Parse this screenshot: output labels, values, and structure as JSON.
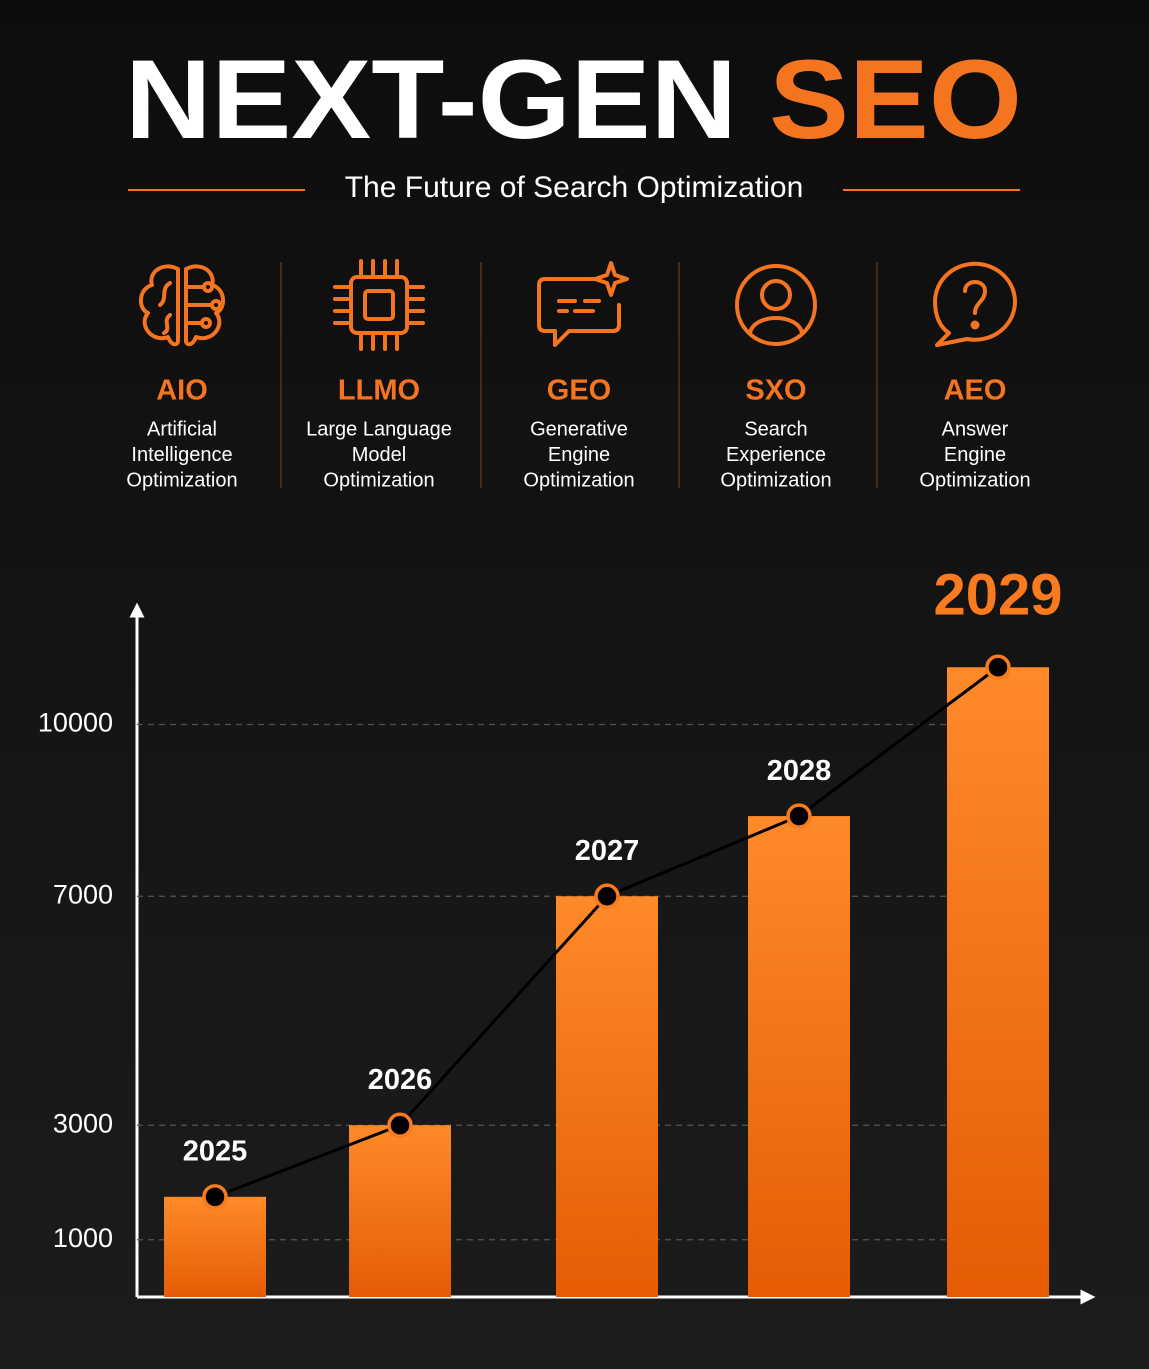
{
  "header": {
    "title_parts": [
      "NEXT-GEN",
      "SEO"
    ],
    "subtitle": "The Future of Search Optimization"
  },
  "pillars": [
    {
      "acronym": "AIO",
      "description": [
        "Artificial",
        "Intelligence",
        "Optimization"
      ]
    },
    {
      "acronym": "LLMO",
      "description": [
        "Large Language",
        "Model",
        "Optimization"
      ]
    },
    {
      "acronym": "GEO",
      "description": [
        "Generative",
        "Engine",
        "Optimization"
      ]
    },
    {
      "acronym": "SXO",
      "description": [
        "Search",
        "Experience",
        "Optimization"
      ]
    },
    {
      "acronym": "AEO",
      "description": [
        "Answer",
        "Engine",
        "Optimization"
      ]
    }
  ],
  "chart_data": {
    "type": "bar",
    "categories": [
      "2025",
      "2026",
      "2027",
      "2028",
      "2029"
    ],
    "values": [
      1750,
      3000,
      7000,
      8400,
      11000
    ],
    "color": "#f97a1f",
    "line_color": "#000000",
    "line_overlay": true,
    "ylim": [
      0,
      12000
    ],
    "yticks": [
      1000,
      3000,
      7000,
      10000
    ],
    "grid": true
  }
}
